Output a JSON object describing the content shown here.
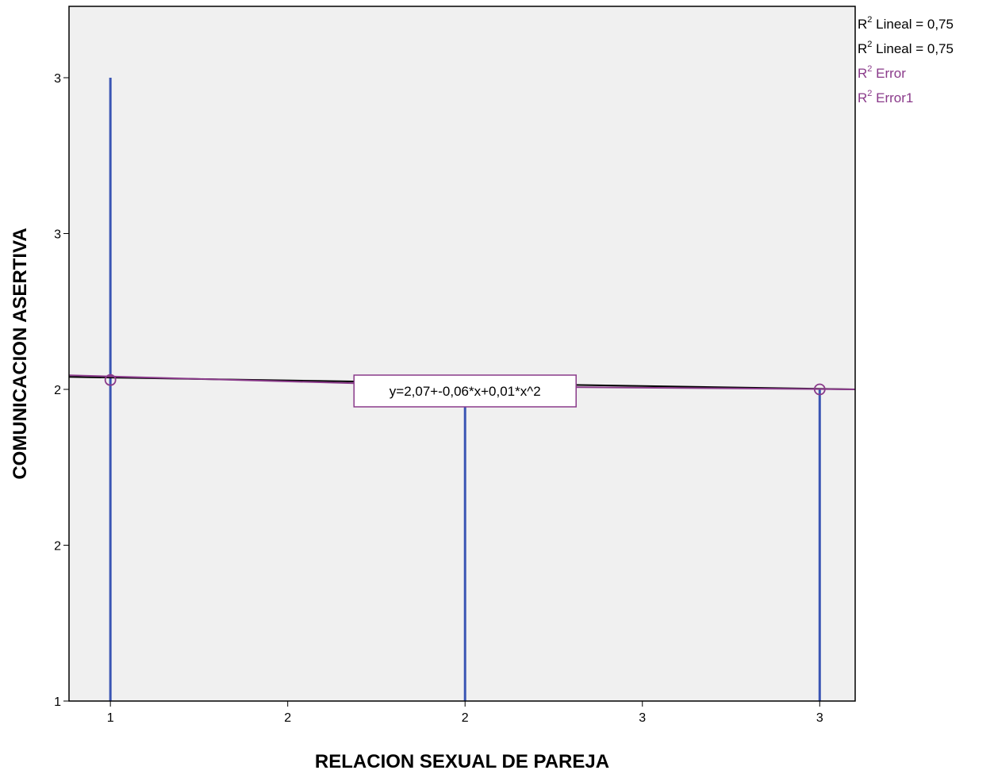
{
  "chart_data": {
    "type": "scatter",
    "xlabel": "RELACION SEXUAL DE PAREJA",
    "ylabel": "COMUNICACION ASERTIVA",
    "xlim": [
      1.78,
      3.11
    ],
    "ylim": [
      1.0,
      3.0
    ],
    "x_ticks": [
      {
        "value": 1.85,
        "label": "1"
      },
      {
        "value": 2.15,
        "label": "2"
      },
      {
        "value": 2.45,
        "label": "2"
      },
      {
        "value": 2.75,
        "label": "3"
      },
      {
        "value": 3.05,
        "label": "3"
      }
    ],
    "y_ticks": [
      {
        "value": 1.0,
        "label": "1"
      },
      {
        "value": 1.5,
        "label": "2"
      },
      {
        "value": 2.0,
        "label": "2"
      },
      {
        "value": 2.5,
        "label": "3"
      },
      {
        "value": 3.0,
        "label": "3"
      }
    ],
    "points": [
      {
        "x": 1.85,
        "y": 2.03
      },
      {
        "x": 3.05,
        "y": 2.0
      }
    ],
    "error_bars": [
      {
        "x": 1.85,
        "low": 1.0,
        "high": 3.0
      },
      {
        "x": 2.45,
        "low": 1.0,
        "high": 2.0
      },
      {
        "x": 3.05,
        "low": 1.0,
        "high": 2.0
      }
    ],
    "fit_lines": [
      {
        "name": "Lineal",
        "color": "#000000",
        "points": [
          [
            1.78,
            2.04
          ],
          [
            3.11,
            2.0
          ]
        ]
      },
      {
        "name": "Error",
        "color": "#8a3a8a",
        "points": [
          [
            1.78,
            2.045
          ],
          [
            2.45,
            2.01
          ],
          [
            3.11,
            2.0
          ]
        ]
      }
    ],
    "equation_label": "y=2,07+-0,06*x+0,01*x^2",
    "legend": {
      "placement": "top-right",
      "entries": [
        {
          "base": "R",
          "sup": "2",
          "text": " Lineal = 0,75",
          "color": "#000000"
        },
        {
          "base": "R",
          "sup": "2",
          "text": " Lineal = 0,75",
          "color": "#000000"
        },
        {
          "base": "R",
          "sup": "2",
          "text": " Error",
          "color": "#8a3a8a"
        },
        {
          "base": "R",
          "sup": "2",
          "text": " Error1",
          "color": "#8a3a8a"
        }
      ]
    },
    "colors": {
      "plot_background": "#f0f0f0",
      "error_bar": "#3a55b4",
      "marker": "#8a3a8a",
      "frame": "#000000"
    },
    "grid": false
  }
}
